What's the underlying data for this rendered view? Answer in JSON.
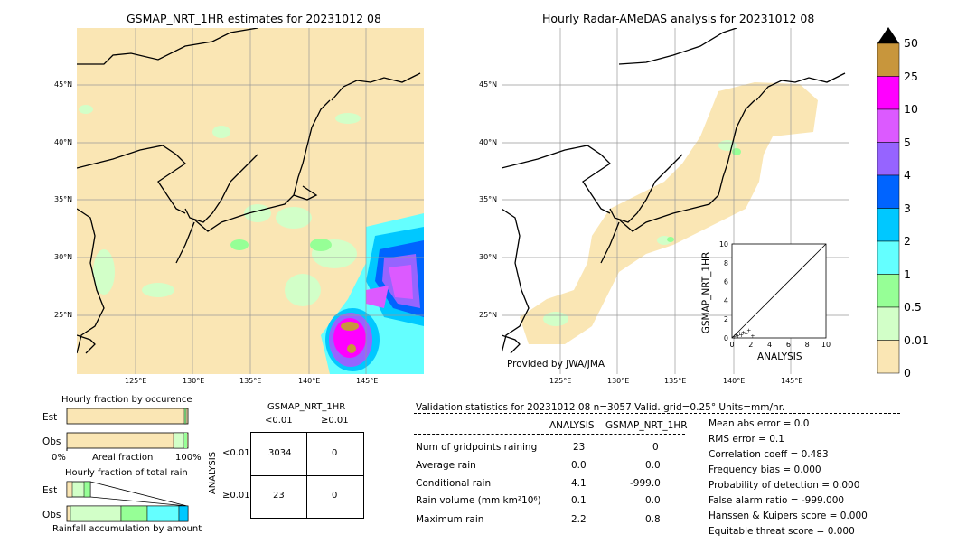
{
  "left_map": {
    "title": "GSMAP_NRT_1HR estimates for 20231012 08",
    "lat_labels": [
      "45°N",
      "40°N",
      "35°N",
      "30°N",
      "25°N"
    ],
    "lon_labels": [
      "125°E",
      "130°E",
      "135°E",
      "140°E",
      "145°E"
    ]
  },
  "right_map": {
    "title": "Hourly Radar-AMeDAS analysis for 20231012 08",
    "lat_labels": [
      "45°N",
      "40°N",
      "35°N",
      "30°N",
      "25°N"
    ],
    "lon_labels": [
      "125°E",
      "130°E",
      "135°E",
      "140°E",
      "145°E"
    ],
    "credit": "Provided by JWA/JMA"
  },
  "colorbar": {
    "labels": [
      "50",
      "25",
      "10",
      "5",
      "4",
      "3",
      "2",
      "1",
      "0.5",
      "0.01",
      "0"
    ],
    "colors": [
      "#c8963c",
      "#ff00ff",
      "#dc5aff",
      "#9664ff",
      "#0064ff",
      "#00c8ff",
      "#64ffff",
      "#96ff96",
      "#d2ffc8",
      "#fae6b4"
    ],
    "extend_color": "#000000"
  },
  "fraction_occurrence": {
    "title": "Hourly fraction by occurence",
    "rows": [
      "Est",
      "Obs"
    ],
    "x_left": "0%",
    "x_mid": "Areal fraction",
    "x_right": "100%"
  },
  "fraction_total": {
    "title": "Hourly fraction of total rain",
    "rows": [
      "Est",
      "Obs"
    ],
    "footer": "Rainfall accumulation by amount"
  },
  "contingency": {
    "header": "GSMAP_NRT_1HR",
    "col_labels": [
      "<0.01",
      "≥0.01"
    ],
    "row_axis": "ANALYSIS",
    "row_labels": [
      "<0.01",
      "≥0.01"
    ],
    "cells": [
      [
        "3034",
        "0"
      ],
      [
        "23",
        "0"
      ]
    ]
  },
  "scatter": {
    "ylabel": "GSMAP_NRT_1HR",
    "xlabel": "ANALYSIS",
    "ticks": [
      "0",
      "2",
      "4",
      "6",
      "8",
      "10"
    ],
    "top_tick": "10"
  },
  "validation": {
    "header": "Validation statistics for 20231012 08  n=3057 Valid. grid=0.25° Units=mm/hr.",
    "col_headers": [
      "ANALYSIS",
      "GSMAP_NRT_1HR"
    ],
    "rows": [
      {
        "label": "Num of gridpoints raining",
        "a": "23",
        "g": "0"
      },
      {
        "label": "Average rain",
        "a": "0.0",
        "g": "0.0"
      },
      {
        "label": "Conditional rain",
        "a": "4.1",
        "g": "-999.0"
      },
      {
        "label": "Rain volume (mm km²10⁶)",
        "a": "0.1",
        "g": "0.0"
      },
      {
        "label": "Maximum rain",
        "a": "2.2",
        "g": "0.8"
      }
    ],
    "scores": [
      "Mean abs error =    0.0",
      "RMS error =    0.1",
      "Correlation coeff =  0.483",
      "Frequency bias =  0.000",
      "Probability of detection =  0.000",
      "False alarm ratio = -999.000",
      "Hanssen & Kuipers score =  0.000",
      "Equitable threat score =  0.000"
    ]
  },
  "chart_data": [
    {
      "type": "heatmap",
      "title": "GSMAP_NRT_1HR estimates for 20231012 08",
      "x_ticks": [
        "125°E",
        "130°E",
        "135°E",
        "140°E",
        "145°E"
      ],
      "y_ticks": [
        "45°N",
        "40°N",
        "35°N",
        "30°N",
        "25°N"
      ]
    },
    {
      "type": "heatmap",
      "title": "Hourly Radar-AMeDAS analysis for 20231012 08",
      "x_ticks": [
        "125°E",
        "130°E",
        "135°E",
        "140°E",
        "145°E"
      ],
      "y_ticks": [
        "45°N",
        "40°N",
        "35°N",
        "30°N",
        "25°N"
      ]
    },
    {
      "type": "scatter",
      "xlabel": "ANALYSIS",
      "ylabel": "GSMAP_NRT_1HR",
      "xlim": [
        0,
        10
      ],
      "ylim": [
        0,
        10
      ],
      "x": [
        0.2,
        0.4,
        0.6,
        0.8,
        1.0,
        1.2,
        1.5,
        1.8,
        2.2
      ],
      "y": [
        0.1,
        0.3,
        0.2,
        0.5,
        0.3,
        0.6,
        0.4,
        0.8,
        0.2
      ]
    },
    {
      "type": "table",
      "title": "contingency",
      "rows": [
        "<0.01",
        "≥0.01"
      ],
      "cols": [
        "<0.01",
        "≥0.01"
      ],
      "values": [
        [
          3034,
          0
        ],
        [
          23,
          0
        ]
      ]
    }
  ]
}
